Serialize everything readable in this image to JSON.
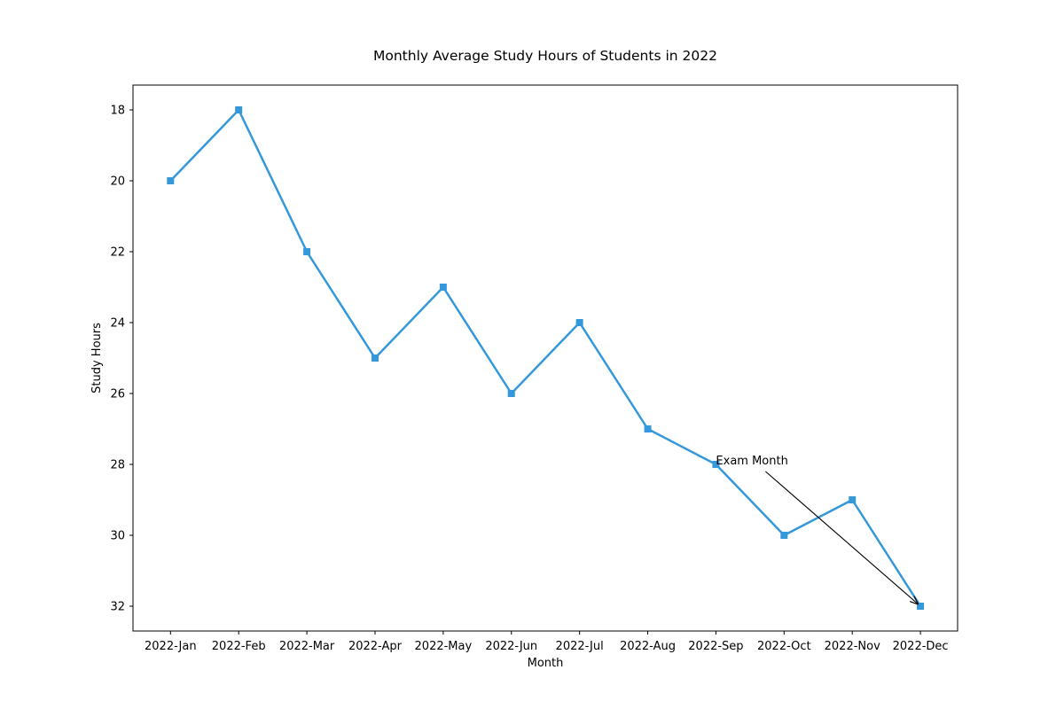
{
  "chart_data": {
    "type": "line",
    "title": "Monthly Average Study Hours of Students in 2022",
    "xlabel": "Month",
    "ylabel": "Study Hours",
    "categories": [
      "2022-Jan",
      "2022-Feb",
      "2022-Mar",
      "2022-Apr",
      "2022-May",
      "2022-Jun",
      "2022-Jul",
      "2022-Aug",
      "2022-Sep",
      "2022-Oct",
      "2022-Nov",
      "2022-Dec"
    ],
    "series": [
      {
        "values": [
          20,
          18,
          22,
          25,
          23,
          26,
          24,
          27,
          28,
          30,
          29,
          32
        ],
        "color": "#3498db",
        "marker": "square"
      }
    ],
    "ylim": [
      32.7,
      17.3
    ],
    "y_inverted": true,
    "yticks": [
      18,
      20,
      22,
      24,
      26,
      28,
      30,
      32
    ],
    "grid": false,
    "legend": "none",
    "annotation": {
      "text": "Exam Month",
      "text_at": {
        "category": "2022-Sep",
        "value": 28
      },
      "arrow_to": {
        "category": "2022-Dec",
        "value": 32
      }
    }
  }
}
